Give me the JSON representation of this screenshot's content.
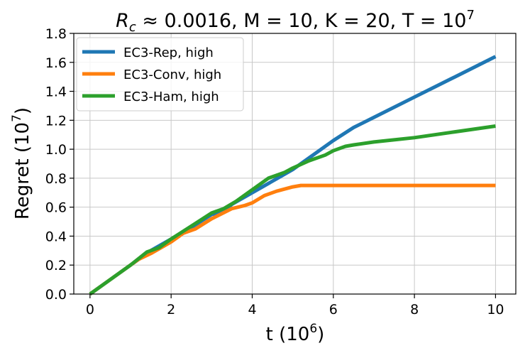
{
  "chart_data": {
    "type": "line",
    "title": {
      "r_c": "R",
      "r_c_sub": "c",
      "rest": " ≈ 0.0016, M = 10, K = 20, T = 10",
      "rest_sup": "7"
    },
    "xlabel": {
      "main": "t (10",
      "sup": "6",
      "tail": ")"
    },
    "ylabel": {
      "main": "Regret (10",
      "sup": "7",
      "tail": ")"
    },
    "xlim": [
      -0.4,
      10.5
    ],
    "ylim": [
      0,
      1.8
    ],
    "xticks": [
      0,
      2,
      4,
      6,
      8,
      10
    ],
    "xtick_labels": [
      "0",
      "2",
      "4",
      "6",
      "8",
      "10"
    ],
    "yticks": [
      0.0,
      0.2,
      0.4,
      0.6,
      0.8,
      1.0,
      1.2,
      1.4,
      1.6,
      1.8
    ],
    "ytick_labels": [
      "0.0",
      "0.2",
      "0.4",
      "0.6",
      "0.8",
      "1.0",
      "1.2",
      "1.4",
      "1.6",
      "1.8"
    ],
    "grid": true,
    "legend_position": "top-left",
    "series": [
      {
        "name": "EC3-Rep, high",
        "color": "#1f77b4",
        "x": [
          0,
          0.5,
          1.0,
          1.5,
          2.0,
          2.5,
          3.0,
          3.3,
          3.5,
          4.0,
          4.5,
          5.0,
          5.5,
          6.0,
          6.5,
          7.0,
          8.0,
          9.0,
          10.0
        ],
        "y": [
          0,
          0.1,
          0.2,
          0.3,
          0.38,
          0.46,
          0.55,
          0.57,
          0.62,
          0.7,
          0.78,
          0.86,
          0.96,
          1.06,
          1.15,
          1.22,
          1.36,
          1.5,
          1.64
        ]
      },
      {
        "name": "EC3-Conv, high",
        "color": "#ff7f0e",
        "x": [
          0,
          0.5,
          1.0,
          1.2,
          1.5,
          2.0,
          2.3,
          2.6,
          3.0,
          3.5,
          3.8,
          4.0,
          4.3,
          4.6,
          5.0,
          5.2,
          6.0,
          8.0,
          10.0
        ],
        "y": [
          0,
          0.1,
          0.2,
          0.24,
          0.28,
          0.36,
          0.42,
          0.45,
          0.52,
          0.59,
          0.61,
          0.63,
          0.68,
          0.71,
          0.74,
          0.75,
          0.75,
          0.75,
          0.75
        ]
      },
      {
        "name": "EC3-Ham, high",
        "color": "#2ca02c",
        "x": [
          0,
          0.5,
          1.0,
          1.4,
          1.7,
          2.0,
          2.5,
          3.0,
          3.3,
          3.6,
          4.0,
          4.4,
          4.8,
          5.0,
          5.4,
          5.8,
          6.0,
          6.3,
          6.5,
          7.0,
          8.0,
          9.0,
          10.0
        ],
        "y": [
          0,
          0.1,
          0.2,
          0.29,
          0.32,
          0.38,
          0.47,
          0.56,
          0.59,
          0.64,
          0.72,
          0.8,
          0.84,
          0.87,
          0.92,
          0.96,
          0.99,
          1.02,
          1.03,
          1.05,
          1.08,
          1.12,
          1.16
        ]
      }
    ]
  }
}
